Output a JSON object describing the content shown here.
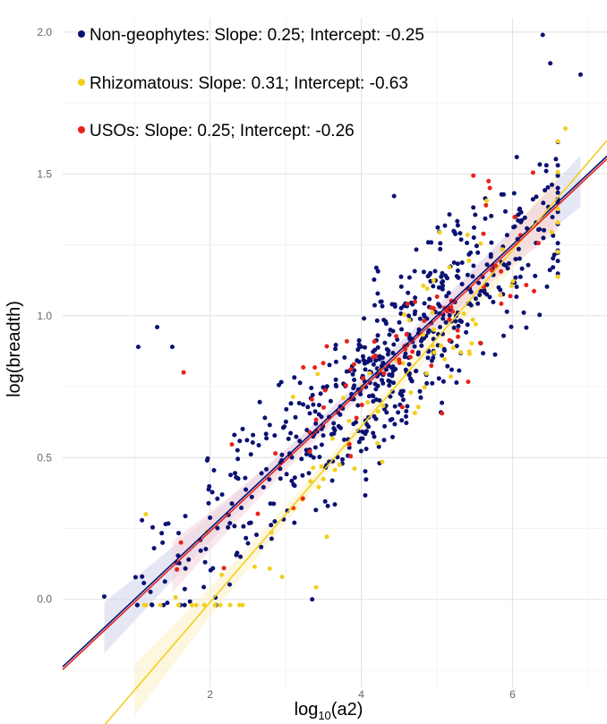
{
  "chart_data": {
    "type": "scatter",
    "xlabel_main": "log",
    "xlabel_sub": "10",
    "xlabel_tail": "(a2)",
    "ylabel": "log(breadth)",
    "xlim": [
      0.05,
      7.25
    ],
    "ylim": [
      -0.31,
      2.05
    ],
    "x_ticks": [
      2,
      4,
      6
    ],
    "x_tick_labels": [
      "2",
      "4",
      "6"
    ],
    "y_ticks": [
      0.0,
      0.5,
      1.0,
      1.5,
      2.0
    ],
    "y_tick_labels": [
      "0.0",
      "0.5",
      "1.0",
      "1.5",
      "2.0"
    ],
    "grid": true,
    "legend_position": "top-left",
    "series": [
      {
        "name": "Non-geophytes",
        "legend_label": "Non-geophytes: Slope: 0.25; Intercept: -0.25",
        "color": "#0a1172",
        "slope": 0.25,
        "intercept": -0.25,
        "fit_x_range": [
          0.05,
          7.25
        ],
        "band_x_range": [
          0.6,
          6.9
        ],
        "band_color": "#cfd3ec",
        "point_count": 650,
        "seed": 7
      },
      {
        "name": "Rhizomatous",
        "legend_label": "Rhizomatous: Slope: 0.31; Intercept: -0.63",
        "color": "#f2cf1d",
        "slope": 0.31,
        "intercept": -0.63,
        "fit_x_range": [
          0.3,
          7.25
        ],
        "band_x_range": [
          1.0,
          6.6
        ],
        "band_color": "#fbf1c6",
        "point_count": 90,
        "seed": 23
      },
      {
        "name": "USOs",
        "legend_label": "USOs: Slope: 0.25; Intercept: -0.26",
        "color": "#e8221b",
        "slope": 0.25,
        "intercept": -0.26,
        "fit_x_range": [
          0.05,
          7.25
        ],
        "band_x_range": [
          1.5,
          6.6
        ],
        "band_color": "#f6d4da",
        "point_count": 75,
        "seed": 41
      }
    ],
    "highlight_points": [
      {
        "series": "Non-geophytes",
        "x": 6.4,
        "y": 1.99
      },
      {
        "series": "Non-geophytes",
        "x": 6.9,
        "y": 1.85
      },
      {
        "series": "Non-geophytes",
        "x": 6.5,
        "y": 1.89
      },
      {
        "series": "Non-geophytes",
        "x": 1.3,
        "y": 0.96
      },
      {
        "series": "Non-geophytes",
        "x": 1.5,
        "y": 0.89
      },
      {
        "series": "Non-geophytes",
        "x": 1.05,
        "y": 0.89
      },
      {
        "series": "Non-geophytes",
        "x": 3.35,
        "y": 0.0
      },
      {
        "series": "Non-geophytes",
        "x": 0.6,
        "y": 0.01
      },
      {
        "series": "Rhizomatous",
        "x": 6.7,
        "y": 1.66
      },
      {
        "series": "Rhizomatous",
        "x": 1.15,
        "y": 0.3
      },
      {
        "series": "USOs",
        "x": 1.65,
        "y": 0.8
      },
      {
        "series": "USOs",
        "x": 5.7,
        "y": 1.45
      }
    ]
  }
}
